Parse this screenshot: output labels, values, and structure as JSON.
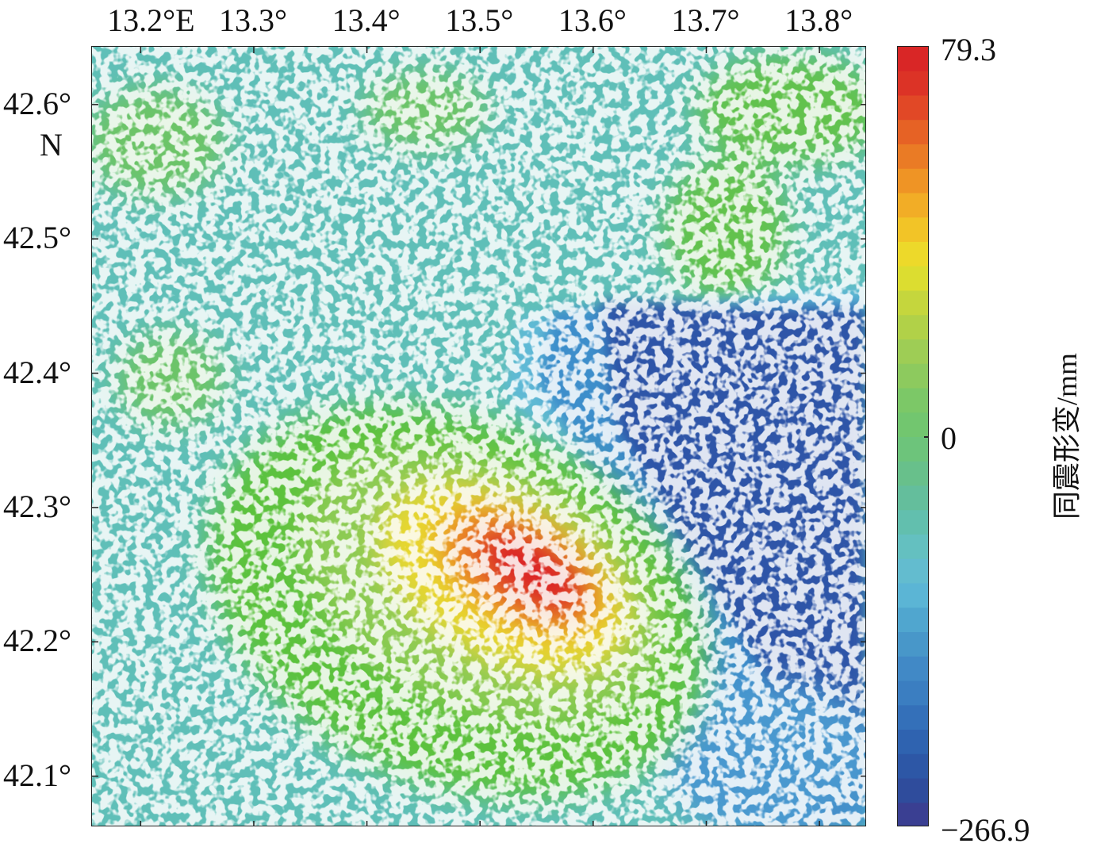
{
  "map": {
    "x_ticks": [
      {
        "lon": 13.2,
        "label": "13.2°",
        "suffix": "E"
      },
      {
        "lon": 13.3,
        "label": "13.3°"
      },
      {
        "lon": 13.4,
        "label": "13.4°"
      },
      {
        "lon": 13.5,
        "label": "13.5°"
      },
      {
        "lon": 13.6,
        "label": "13.6°"
      },
      {
        "lon": 13.7,
        "label": "13.7°"
      },
      {
        "lon": 13.8,
        "label": "13.8°"
      }
    ],
    "y_ticks": [
      {
        "lat": 42.6,
        "label": "42.6°"
      },
      {
        "lat": 42.5,
        "label": "42.5°"
      },
      {
        "lat": 42.4,
        "label": "42.4°"
      },
      {
        "lat": 42.3,
        "label": "42.3°"
      },
      {
        "lat": 42.2,
        "label": "42.2°"
      },
      {
        "lat": 42.1,
        "label": "42.1°"
      }
    ],
    "lon_unit": "E",
    "lat_unit": "N",
    "lon_range": [
      13.157,
      13.842
    ],
    "lat_range": [
      42.062,
      42.643
    ]
  },
  "colorbar": {
    "title": "同震形变/mm",
    "max_label": "79.3",
    "zero_label": "0",
    "min_label": "−266.9",
    "max": 79.3,
    "min": -266.9,
    "colors": [
      "#3a3f92",
      "#2f4c9c",
      "#2d57a6",
      "#2f63b0",
      "#3470b9",
      "#3b7ec1",
      "#4189c6",
      "#4897c9",
      "#50a6cf",
      "#5bb5d5",
      "#63bccf",
      "#64c0c0",
      "#62bfae",
      "#64be9c",
      "#68c08b",
      "#6dc47b",
      "#72c66f",
      "#7cc867",
      "#8dca5e",
      "#9ecd55",
      "#b1d148",
      "#c5d63d",
      "#dcdd30",
      "#edd92a",
      "#f2c427",
      "#f2ad26",
      "#ef9425",
      "#ea7b25",
      "#e66225",
      "#e14826",
      "#dc3326",
      "#d92626"
    ]
  },
  "field": {
    "dominant_colors": {
      "background": "#5fbfb8",
      "green": "#5cc23e",
      "blue": "#2f55a8",
      "mid_blue": "#3c8ecb",
      "light_blue": "#62c2d6",
      "yellow": "#e8d72d",
      "orange": "#ea7f25",
      "red": "#dc2626",
      "speckle": "#ffffff"
    }
  }
}
